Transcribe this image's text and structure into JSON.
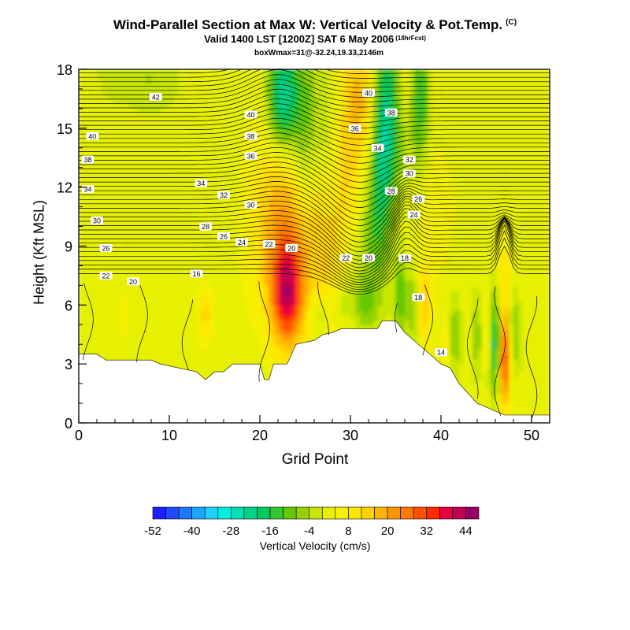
{
  "title": "Wind-Parallel Section at Max W: Vertical Velocity & Pot.Temp.",
  "title_mark": "(C)",
  "subtitle": "Valid 1400 LST [1200Z] SAT 6 May 2006",
  "subtitle_note": "(18hrFcst)",
  "box_info": "boxWmax=31@-32.24,19.33,2146m",
  "chart_data": {
    "type": "heatmap",
    "xlabel": "Grid Point",
    "ylabel": "Height (Kft MSL)",
    "xlim": [
      0,
      52
    ],
    "ylim": [
      0,
      18
    ],
    "xticks": [
      0,
      10,
      20,
      30,
      40,
      50
    ],
    "yticks": [
      0,
      3,
      6,
      9,
      12,
      15,
      18
    ],
    "terrain_kft": [
      [
        0,
        3.5
      ],
      [
        2,
        3.5
      ],
      [
        3,
        3.2
      ],
      [
        8,
        3.2
      ],
      [
        9,
        3.0
      ],
      [
        13,
        2.6
      ],
      [
        14,
        2.2
      ],
      [
        15,
        2.6
      ],
      [
        16,
        2.6
      ],
      [
        17,
        3.0
      ],
      [
        20,
        3.0
      ],
      [
        20.5,
        2.2
      ],
      [
        21,
        2.2
      ],
      [
        21.5,
        3.0
      ],
      [
        23,
        3.0
      ],
      [
        24,
        4.0
      ],
      [
        26,
        4.2
      ],
      [
        27,
        4.5
      ],
      [
        28,
        4.6
      ],
      [
        29,
        4.8
      ],
      [
        33,
        4.8
      ],
      [
        33.5,
        5.2
      ],
      [
        35,
        5.2
      ],
      [
        36,
        4.6
      ],
      [
        37,
        4.2
      ],
      [
        38,
        3.8
      ],
      [
        39,
        3.4
      ],
      [
        40,
        3.0
      ],
      [
        41,
        2.8
      ],
      [
        42,
        2.0
      ],
      [
        43,
        1.5
      ],
      [
        44,
        1.0
      ],
      [
        45,
        0.8
      ],
      [
        46,
        0.6
      ],
      [
        47,
        0.4
      ],
      [
        52,
        0.4
      ]
    ],
    "w_field_cms": [
      {
        "x": 3,
        "z": 9,
        "w": 0,
        "sx": 5,
        "sz": 6
      },
      {
        "x": 23,
        "z": 6.5,
        "w": 32,
        "sx": 1.2,
        "sz": 1.8
      },
      {
        "x": 22.5,
        "z": 9.5,
        "w": 12,
        "sx": 2.5,
        "sz": 3
      },
      {
        "x": 24,
        "z": 13,
        "w": 10,
        "sx": 3,
        "sz": 4
      },
      {
        "x": 28,
        "z": 10,
        "w": 12,
        "sx": 2.5,
        "sz": 4
      },
      {
        "x": 31,
        "z": 16.5,
        "w": 14,
        "sx": 1.5,
        "sz": 2.5
      },
      {
        "x": 36,
        "z": 17,
        "w": 12,
        "sx": 1,
        "sz": 2
      },
      {
        "x": 39,
        "z": 11,
        "w": 4,
        "sx": 2,
        "sz": 3
      },
      {
        "x": 22.5,
        "z": 16.5,
        "w": -30,
        "sx": 1.2,
        "sz": 2
      },
      {
        "x": 25,
        "z": 14.5,
        "w": -20,
        "sx": 1.2,
        "sz": 3.5
      },
      {
        "x": 27.5,
        "z": 14,
        "w": -12,
        "sx": 1,
        "sz": 3
      },
      {
        "x": 33.5,
        "z": 15,
        "w": -22,
        "sx": 0.8,
        "sz": 3.5
      },
      {
        "x": 35,
        "z": 16,
        "w": -18,
        "sx": 0.9,
        "sz": 3
      },
      {
        "x": 37.5,
        "z": 16.5,
        "w": -20,
        "sx": 0.8,
        "sz": 2.5
      },
      {
        "x": 32.5,
        "z": 10,
        "w": -12,
        "sx": 1.2,
        "sz": 3
      },
      {
        "x": 30,
        "z": 8.5,
        "w": -6,
        "sx": 1.2,
        "sz": 1.5
      },
      {
        "x": 8,
        "z": 17.5,
        "w": -6,
        "sx": 2,
        "sz": 1.2
      },
      {
        "x": 4,
        "z": 17.8,
        "w": -4,
        "sx": 1.5,
        "sz": 1
      },
      {
        "x": 14,
        "z": 5.5,
        "w": 12,
        "sx": 0.5,
        "sz": 1
      },
      {
        "x": 5,
        "z": 5.5,
        "w": 6,
        "sx": 0.4,
        "sz": 0.8
      },
      {
        "x": 47,
        "z": 3.5,
        "w": 34,
        "sx": 0.5,
        "sz": 1.8
      },
      {
        "x": 46,
        "z": 4,
        "w": -24,
        "sx": 0.5,
        "sz": 1.8
      },
      {
        "x": 45,
        "z": 4.5,
        "w": 10,
        "sx": 0.4,
        "sz": 1.5
      },
      {
        "x": 44,
        "z": 4.5,
        "w": -10,
        "sx": 0.4,
        "sz": 1.5
      },
      {
        "x": 48,
        "z": 4.5,
        "w": -12,
        "sx": 0.5,
        "sz": 1.5
      },
      {
        "x": 38,
        "z": 6,
        "w": 14,
        "sx": 0.6,
        "sz": 1.5
      },
      {
        "x": 37,
        "z": 6,
        "w": -12,
        "sx": 0.5,
        "sz": 1.5
      },
      {
        "x": 35.5,
        "z": 6.5,
        "w": -14,
        "sx": 0.5,
        "sz": 1.5
      },
      {
        "x": 41.5,
        "z": 4.5,
        "w": -10,
        "sx": 0.5,
        "sz": 1.5
      },
      {
        "x": 40.5,
        "z": 4,
        "w": 8,
        "sx": 0.4,
        "sz": 1
      },
      {
        "x": 31.5,
        "z": 6,
        "w": -10,
        "sx": 1,
        "sz": 1
      },
      {
        "x": 29,
        "z": 6,
        "w": -8,
        "sx": 0.8,
        "sz": 1
      },
      {
        "x": 26.5,
        "z": 5.5,
        "w": -10,
        "sx": 0.8,
        "sz": 0.8
      },
      {
        "x": 47,
        "z": 8,
        "w": 8,
        "sx": 0.5,
        "sz": 1.2
      }
    ],
    "theta_contour_labels": [
      {
        "x": 8.5,
        "z": 16.6,
        "text": "42"
      },
      {
        "x": 1.5,
        "z": 14.6,
        "text": "40"
      },
      {
        "x": 1,
        "z": 13.4,
        "text": "38"
      },
      {
        "x": 1,
        "z": 11.9,
        "text": "34"
      },
      {
        "x": 2,
        "z": 10.3,
        "text": "30"
      },
      {
        "x": 3,
        "z": 8.9,
        "text": "26"
      },
      {
        "x": 3,
        "z": 7.5,
        "text": "22"
      },
      {
        "x": 6,
        "z": 7.2,
        "text": "20"
      },
      {
        "x": 13,
        "z": 7.6,
        "text": "16"
      },
      {
        "x": 19,
        "z": 15.7,
        "text": "40"
      },
      {
        "x": 19,
        "z": 14.6,
        "text": "38"
      },
      {
        "x": 19,
        "z": 13.6,
        "text": "36"
      },
      {
        "x": 13.5,
        "z": 12.2,
        "text": "34"
      },
      {
        "x": 16,
        "z": 11.6,
        "text": "32"
      },
      {
        "x": 19,
        "z": 11.1,
        "text": "30"
      },
      {
        "x": 14,
        "z": 10.0,
        "text": "28"
      },
      {
        "x": 16,
        "z": 9.5,
        "text": "26"
      },
      {
        "x": 18,
        "z": 9.2,
        "text": "24"
      },
      {
        "x": 21,
        "z": 9.1,
        "text": "22"
      },
      {
        "x": 23.5,
        "z": 8.9,
        "text": "20"
      },
      {
        "x": 32,
        "z": 16.8,
        "text": "40"
      },
      {
        "x": 34.5,
        "z": 15.8,
        "text": "38"
      },
      {
        "x": 30.5,
        "z": 15.0,
        "text": "36"
      },
      {
        "x": 33,
        "z": 14.0,
        "text": "34"
      },
      {
        "x": 36.5,
        "z": 13.4,
        "text": "32"
      },
      {
        "x": 36.5,
        "z": 12.7,
        "text": "30"
      },
      {
        "x": 34.5,
        "z": 11.8,
        "text": "28"
      },
      {
        "x": 37.5,
        "z": 11.4,
        "text": "26"
      },
      {
        "x": 37,
        "z": 10.6,
        "text": "24"
      },
      {
        "x": 29.5,
        "z": 8.4,
        "text": "22"
      },
      {
        "x": 32,
        "z": 8.4,
        "text": "20"
      },
      {
        "x": 36,
        "z": 8.4,
        "text": "18"
      },
      {
        "x": 37.5,
        "z": 6.4,
        "text": "18"
      },
      {
        "x": 40,
        "z": 3.6,
        "text": "14"
      }
    ],
    "colorbar": {
      "title": "Vertical Velocity (cm/s)",
      "tick_labels": [
        "-52",
        "-40",
        "-28",
        "-16",
        "-4",
        "8",
        "20",
        "32",
        "44"
      ],
      "tick_values": [
        -52,
        -40,
        -28,
        -16,
        -4,
        8,
        20,
        32,
        44
      ],
      "bin_edges": [
        -52,
        -48,
        -44,
        -40,
        -36,
        -32,
        -28,
        -24,
        -20,
        -16,
        -12,
        -8,
        -4,
        0,
        4,
        8,
        12,
        16,
        20,
        24,
        28,
        32,
        36,
        40,
        44,
        48
      ],
      "colors": [
        "#1e1eff",
        "#1e4bff",
        "#1e78ff",
        "#1ea5ff",
        "#1ed2ff",
        "#00eee0",
        "#00e0b4",
        "#00d287",
        "#00c85a",
        "#32c832",
        "#64c800",
        "#96d200",
        "#c8e600",
        "#e6f000",
        "#f5f000",
        "#ffe600",
        "#ffd200",
        "#ffb400",
        "#ff9600",
        "#ff7800",
        "#ff5000",
        "#ff2800",
        "#e6003c",
        "#be0050",
        "#960064"
      ]
    }
  }
}
